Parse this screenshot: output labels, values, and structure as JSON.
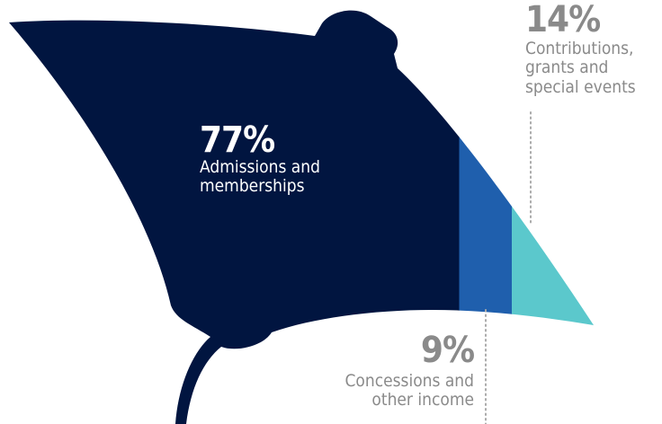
{
  "chart_data": {
    "type": "pictogram",
    "categories": [
      "Admissions and memberships",
      "Concessions and other income",
      "Contributions, grants and special events"
    ],
    "values": [
      77,
      9,
      14
    ],
    "value_labels": [
      "77%",
      "9%",
      "14%"
    ],
    "colors": [
      "#011540",
      "#1f5fad",
      "#5bc8cc"
    ]
  }
}
